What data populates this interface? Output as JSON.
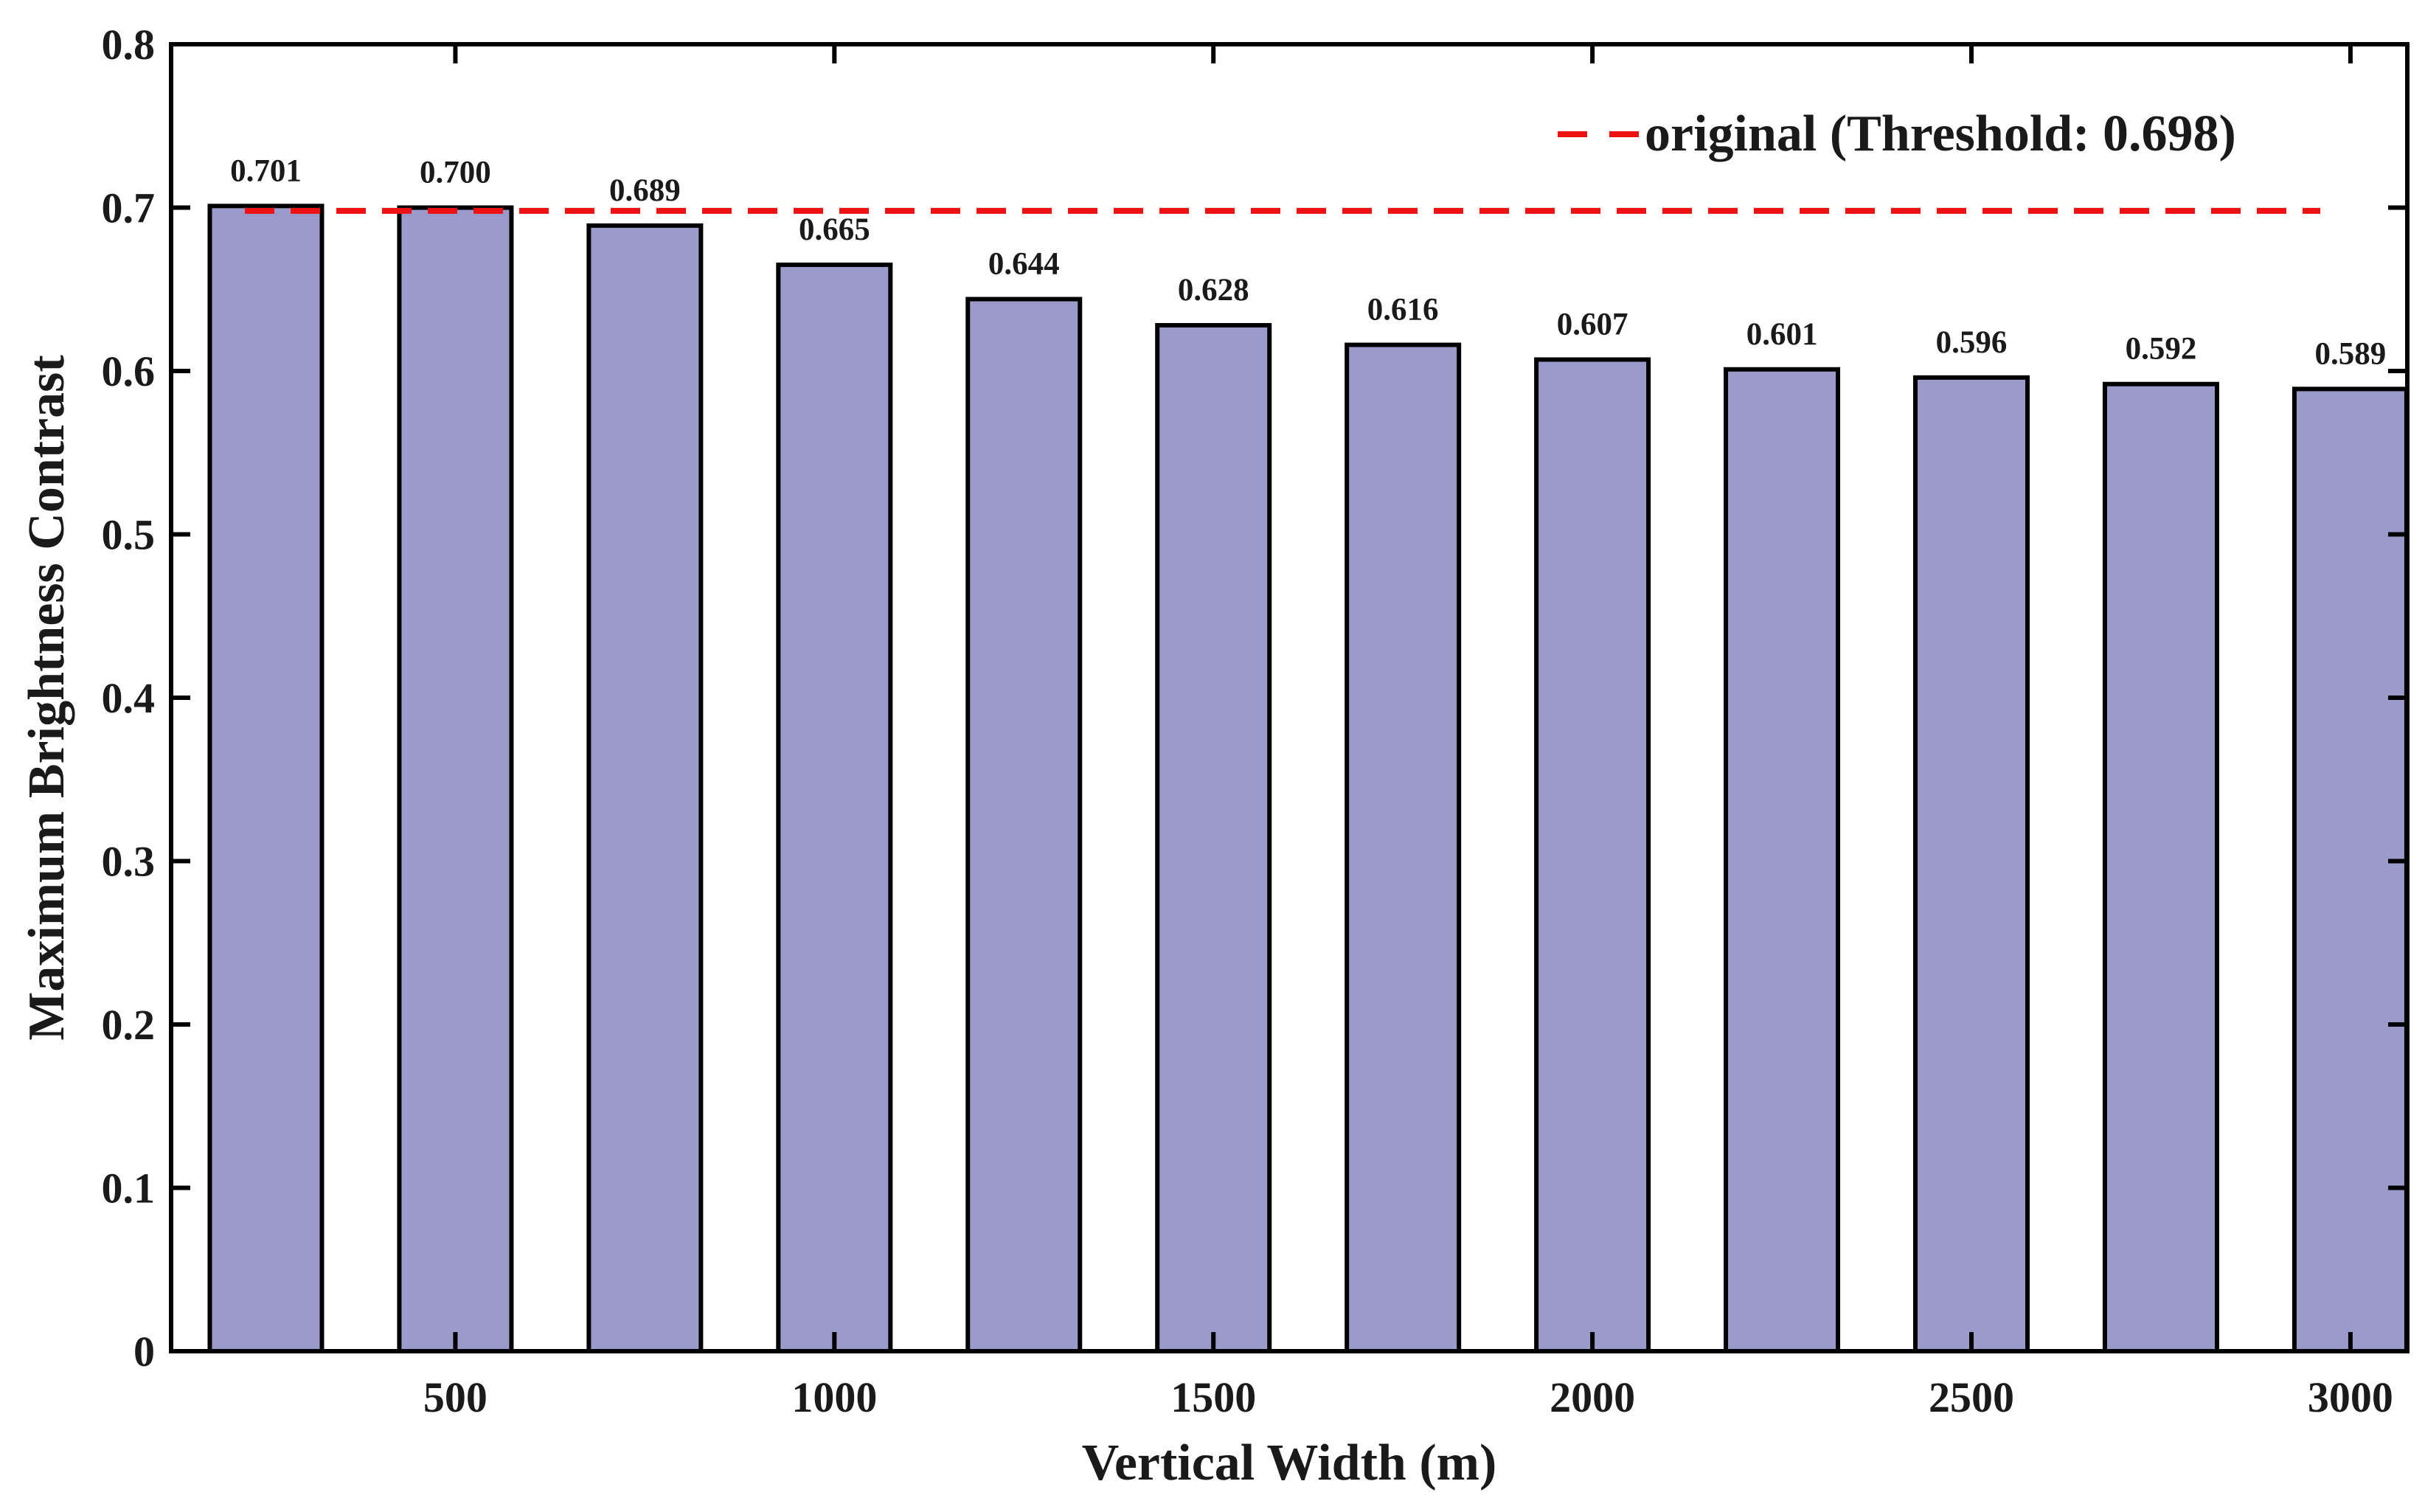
{
  "chart_data": {
    "type": "bar",
    "xlabel": "Vertical Width (m)",
    "ylabel": "Maximum Brightness Contrast",
    "ylim": [
      0,
      0.8
    ],
    "yticks": [
      0,
      0.1,
      0.2,
      0.3,
      0.4,
      0.5,
      0.6,
      0.7,
      0.8
    ],
    "ytick_labels": [
      "0",
      "0.1",
      "0.2",
      "0.3",
      "0.4",
      "0.5",
      "0.6",
      "0.7",
      "0.8"
    ],
    "xlim": [
      125,
      3075
    ],
    "x": [
      250,
      500,
      750,
      1000,
      1250,
      1500,
      1750,
      2000,
      2250,
      2500,
      2750,
      3000
    ],
    "values": [
      0.701,
      0.7,
      0.689,
      0.665,
      0.644,
      0.628,
      0.616,
      0.607,
      0.601,
      0.596,
      0.592,
      0.589
    ],
    "value_labels": [
      "0.701",
      "0.700",
      "0.689",
      "0.665",
      "0.644",
      "0.628",
      "0.616",
      "0.607",
      "0.601",
      "0.596",
      "0.592",
      "0.589"
    ],
    "xticks": [
      500,
      1000,
      1500,
      2000,
      2500,
      3000
    ],
    "xtick_labels": [
      "500",
      "1000",
      "1500",
      "2000",
      "2500",
      "3000"
    ],
    "bar_color": "#9a9bcb",
    "bar_edge_color": "#000000",
    "threshold": {
      "value": 0.698,
      "label": "original (Threshold: 0.698)",
      "color": "#ee1111",
      "style": "dashed"
    },
    "legend_position": "top-right",
    "grid": false
  }
}
